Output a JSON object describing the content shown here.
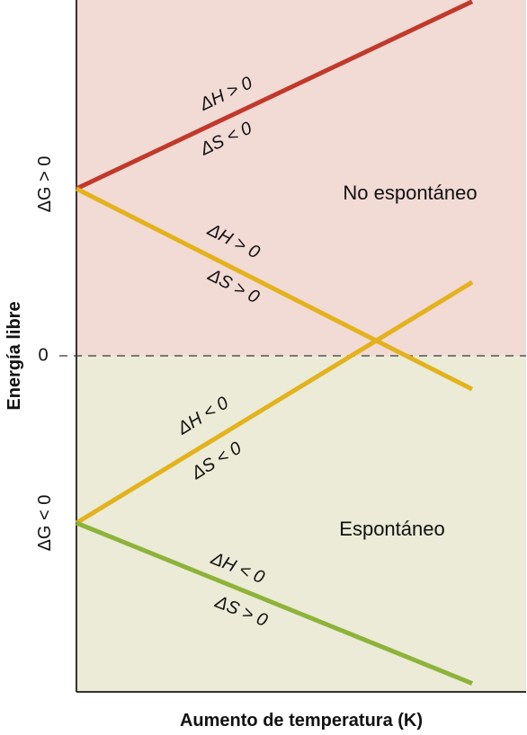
{
  "chart_data": {
    "type": "line",
    "title": "",
    "xlabel": "Aumento de temperatura (K)",
    "ylabel": "Energía libre",
    "x_range": [
      0,
      100
    ],
    "y_range": [
      -100,
      100
    ],
    "grid": false,
    "zero_line": {
      "y": 0,
      "label": "0",
      "style": "dashed"
    },
    "regions": [
      {
        "name": "No espontáneo",
        "y_from": 0,
        "y_to": 100,
        "color": "#f2dad5",
        "tick_label": "ΔG > 0"
      },
      {
        "name": "Espontáneo",
        "y_from": -100,
        "y_to": 0,
        "color": "#ebebd7",
        "tick_label": "ΔG < 0"
      }
    ],
    "series": [
      {
        "label_top": "ΔH > 0",
        "label_bottom": "ΔS < 0",
        "color": "#c0392b",
        "x": [
          0,
          100
        ],
        "y": [
          50,
          106
        ]
      },
      {
        "label_top": "ΔH > 0",
        "label_bottom": "ΔS > 0",
        "color": "#e3b21c",
        "x": [
          0,
          100
        ],
        "y": [
          50,
          -10
        ]
      },
      {
        "label_top": "ΔH < 0",
        "label_bottom": "ΔS < 0",
        "color": "#e3b21c",
        "x": [
          0,
          100
        ],
        "y": [
          -50,
          22
        ]
      },
      {
        "label_top": "ΔH < 0",
        "label_bottom": "ΔS > 0",
        "color": "#8db33a",
        "x": [
          0,
          100
        ],
        "y": [
          -50,
          -98
        ]
      }
    ]
  }
}
